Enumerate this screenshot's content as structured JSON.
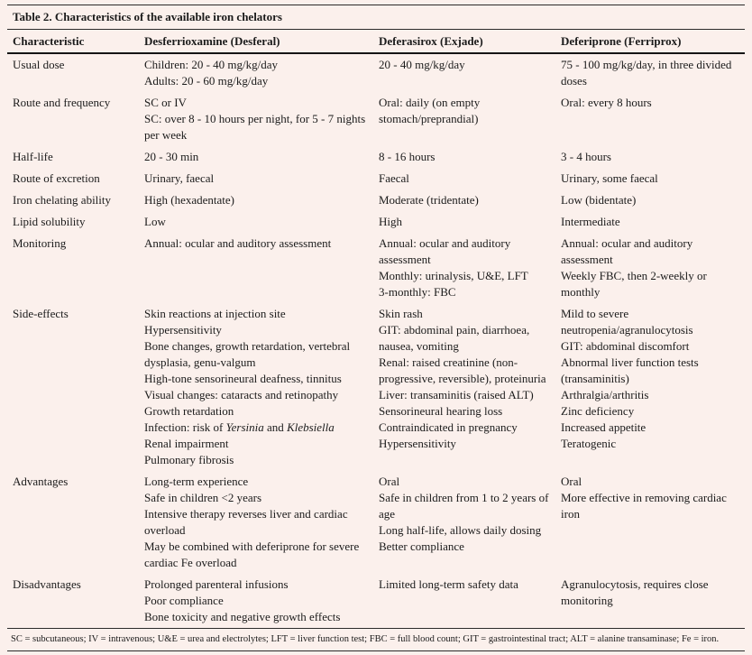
{
  "colors": {
    "background": "#fbf0ec",
    "rule": "#2b2b2b",
    "text": "#1b1b1b"
  },
  "table": {
    "title": "Table 2. Characteristics of the available iron chelators",
    "headers": [
      "Characteristic",
      "Desferrioxamine (Desferal)",
      "Deferasirox (Exjade)",
      "Deferiprone (Ferriprox)"
    ],
    "rows": [
      {
        "label": "Usual dose",
        "c1": [
          "Children: 20 - 40 mg/kg/day",
          "Adults: 20 - 60 mg/kg/day"
        ],
        "c2": [
          "20 - 40 mg/kg/day"
        ],
        "c3": [
          "75 - 100 mg/kg/day, in three divided doses"
        ]
      },
      {
        "label": "Route and frequency",
        "c1": [
          "SC or IV",
          "SC: over 8 - 10 hours per night, for 5 - 7 nights per week"
        ],
        "c2": [
          "Oral: daily (on empty stomach/preprandial)"
        ],
        "c3": [
          "Oral: every 8 hours"
        ]
      },
      {
        "label": "Half-life",
        "c1": [
          "20 - 30 min"
        ],
        "c2": [
          "8 - 16 hours"
        ],
        "c3": [
          "3 - 4 hours"
        ]
      },
      {
        "label": "Route of excretion",
        "c1": [
          "Urinary, faecal"
        ],
        "c2": [
          "Faecal"
        ],
        "c3": [
          "Urinary, some faecal"
        ]
      },
      {
        "label": "Iron chelating ability",
        "c1": [
          "High (hexadentate)"
        ],
        "c2": [
          "Moderate (tridentate)"
        ],
        "c3": [
          "Low (bidentate)"
        ]
      },
      {
        "label": "Lipid solubility",
        "c1": [
          "Low"
        ],
        "c2": [
          "High"
        ],
        "c3": [
          "Intermediate"
        ]
      },
      {
        "label": "Monitoring",
        "c1": [
          "Annual: ocular and auditory assessment"
        ],
        "c2": [
          "Annual: ocular and auditory assessment",
          "Monthly: urinalysis, U&E, LFT",
          "3-monthly: FBC"
        ],
        "c3": [
          "Annual: ocular and auditory assessment",
          "Weekly FBC, then 2-weekly or monthly"
        ]
      },
      {
        "label": "Side-effects",
        "c1": [
          "Skin reactions at injection site",
          "Hypersensitivity",
          "Bone changes, growth retardation, vertebral dysplasia, genu-valgum",
          "High-tone sensorineural deafness, tinnitus",
          "Visual changes: cataracts and retinopathy",
          "Growth retardation"
        ],
        "c1_infection": {
          "prefix": "Infection: risk of ",
          "italic1": "Yersinia",
          "mid": " and ",
          "italic2": "Klebsiella"
        },
        "c1b": [
          "Renal impairment",
          "Pulmonary fibrosis"
        ],
        "c2": [
          "Skin rash",
          "GIT: abdominal pain, diarrhoea, nausea, vomiting",
          "Renal: raised creatinine (non-progressive, reversible), proteinuria",
          "Liver: transaminitis (raised ALT)",
          "Sensorineural hearing loss",
          "Contraindicated in pregnancy",
          "Hypersensitivity"
        ],
        "c3": [
          "Mild to severe neutropenia/agranulocytosis",
          "GIT: abdominal discomfort",
          "Abnormal liver function tests (transaminitis)",
          "Arthralgia/arthritis",
          "Zinc deficiency",
          "Increased appetite",
          "Teratogenic"
        ]
      },
      {
        "label": "Advantages",
        "c1": [
          "Long-term experience",
          "Safe in children <2 years",
          "Intensive therapy reverses liver and cardiac overload",
          "May be combined with deferiprone for severe cardiac Fe overload"
        ],
        "c2": [
          "Oral",
          "Safe in children from 1 to 2 years of age",
          "Long half-life, allows daily dosing",
          "Better compliance"
        ],
        "c3": [
          "Oral",
          "More effective in removing cardiac iron"
        ]
      },
      {
        "label": "Disadvantages",
        "c1": [
          "Prolonged parenteral infusions",
          "Poor compliance",
          "Bone toxicity and negative growth effects"
        ],
        "c2": [
          "Limited long-term safety data"
        ],
        "c3": [
          "Agranulocytosis, requires close monitoring"
        ]
      }
    ],
    "footnote": "SC = subcutaneous; IV = intravenous; U&E = urea and electrolytes; LFT = liver function test; FBC = full blood count; GIT = gastrointestinal tract; ALT = alanine transaminase; Fe = iron."
  }
}
